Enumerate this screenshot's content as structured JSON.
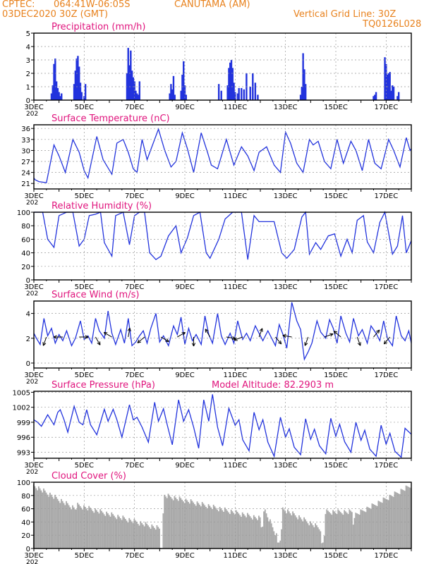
{
  "header": {
    "source": "CPTEC:",
    "coords": "064:41W-06:05S",
    "station": "CANUTAMA (AM)",
    "run": "03DEC2020 30Z (GMT)",
    "grid_note": "Vertical Grid Line: 30Z",
    "model_code": "TQ0126L028"
  },
  "colors": {
    "header": "#e8821e",
    "title": "#e0147d",
    "series": "#2233dd",
    "cloud": "#a9a9a9",
    "grid": "#999999"
  },
  "x_axis": {
    "tick_labels": [
      "3DEC",
      "5DEC",
      "7DEC",
      "9DEC",
      "11DEC",
      "13DEC",
      "15DEC",
      "17DEC"
    ],
    "tick_days": [
      3,
      5,
      7,
      9,
      11,
      13,
      15,
      17
    ],
    "year_stub": "202"
  },
  "chart_data": [
    {
      "type": "bar",
      "id": "precip",
      "title": "Precipitation (mm/h)",
      "ylim": [
        0,
        5
      ],
      "yticks": [
        "0",
        "1",
        "2",
        "3",
        "4",
        "5"
      ],
      "x": [
        3.7,
        3.75,
        3.8,
        3.85,
        3.9,
        3.95,
        4.0,
        4.05,
        4.1,
        4.6,
        4.65,
        4.7,
        4.75,
        4.8,
        4.85,
        4.9,
        5.0,
        5.05,
        6.7,
        6.75,
        6.8,
        6.85,
        6.9,
        6.95,
        7.0,
        7.05,
        7.1,
        7.15,
        7.2,
        8.4,
        8.45,
        8.5,
        8.55,
        8.6,
        8.85,
        8.9,
        8.95,
        9.0,
        9.05,
        10.35,
        10.45,
        10.7,
        10.75,
        10.8,
        10.85,
        10.9,
        10.95,
        11.0,
        11.1,
        11.15,
        11.25,
        11.35,
        11.45,
        11.6,
        11.7,
        11.8,
        11.9,
        13.6,
        13.65,
        13.7,
        13.75,
        13.8,
        16.5,
        16.55,
        16.6,
        16.95,
        17.0,
        17.05,
        17.1,
        17.15,
        17.2,
        17.25,
        17.3,
        17.45,
        17.5
      ],
      "values": [
        0.5,
        1.1,
        2.7,
        3.1,
        1.4,
        0.9,
        0.6,
        0.3,
        0.5,
        1.2,
        2.2,
        3.1,
        3.3,
        2.5,
        1.3,
        0.6,
        0.3,
        1.2,
        2.0,
        3.9,
        2.6,
        3.7,
        2.2,
        1.7,
        1.4,
        0.7,
        0.5,
        0.4,
        1.4,
        0.5,
        1.2,
        0.8,
        1.8,
        0.4,
        0.7,
        1.9,
        2.9,
        1.1,
        0.4,
        1.2,
        0.7,
        1.1,
        2.4,
        2.8,
        3.0,
        2.4,
        1.3,
        0.6,
        0.5,
        0.9,
        0.9,
        0.8,
        2.0,
        1.0,
        2.0,
        1.3,
        0.4,
        0.4,
        1.0,
        3.5,
        2.3,
        1.2,
        0.3,
        0.4,
        0.6,
        3.2,
        2.7,
        1.9,
        2.0,
        2.1,
        0.7,
        1.1,
        1.0,
        0.3,
        0.6
      ]
    },
    {
      "type": "line",
      "id": "temp",
      "title": "Surface Temperature (nC)",
      "ylim": [
        19.5,
        37
      ],
      "yticks": [
        "21",
        "24",
        "27",
        "30",
        "33",
        "36"
      ],
      "x": [
        3,
        3.05,
        3.2,
        3.5,
        3.8,
        4.0,
        4.25,
        4.55,
        4.8,
        5.0,
        5.15,
        5.5,
        5.75,
        6.1,
        6.3,
        6.55,
        6.75,
        6.95,
        7.1,
        7.3,
        7.5,
        7.95,
        8.2,
        8.45,
        8.65,
        8.9,
        9.1,
        9.35,
        9.65,
        9.9,
        10.05,
        10.3,
        10.65,
        10.95,
        11.25,
        11.5,
        11.75,
        11.95,
        12.25,
        12.55,
        12.8,
        13.0,
        13.2,
        13.45,
        13.7,
        13.95,
        14.1,
        14.3,
        14.55,
        14.8,
        15.05,
        15.3,
        15.6,
        15.8,
        16.05,
        16.3,
        16.55,
        16.8,
        17.1,
        17.3,
        17.55,
        17.8,
        17.95,
        18.0
      ],
      "values": [
        22.5,
        22.0,
        21.5,
        21.2,
        31.5,
        28.5,
        24.0,
        33.0,
        29.5,
        24.5,
        22.5,
        33.8,
        27.5,
        23.5,
        32.0,
        33.0,
        29.5,
        25.0,
        24.0,
        33.0,
        27.5,
        35.8,
        30.0,
        25.5,
        27.0,
        34.8,
        30.5,
        24.0,
        34.8,
        29.5,
        26.0,
        25.0,
        33.0,
        26.0,
        31.0,
        28.5,
        24.5,
        29.5,
        31.0,
        26.0,
        24.0,
        35.0,
        32.0,
        26.5,
        24.0,
        33.0,
        31.5,
        32.5,
        27.0,
        25.0,
        33.0,
        26.5,
        32.5,
        30.0,
        24.5,
        33.0,
        26.5,
        25.0,
        33.0,
        30.0,
        25.5,
        33.5,
        30.0,
        30.5
      ]
    },
    {
      "type": "line",
      "id": "rh",
      "title": "Relative Humidity (%)",
      "ylim": [
        0,
        100
      ],
      "yticks": [
        "0",
        "20",
        "40",
        "60",
        "80",
        "100"
      ],
      "x": [
        3,
        3.35,
        3.55,
        3.8,
        4.0,
        4.3,
        4.55,
        4.8,
        5.0,
        5.2,
        5.45,
        5.65,
        5.8,
        6.1,
        6.25,
        6.55,
        6.8,
        7.0,
        7.2,
        7.4,
        7.6,
        7.85,
        8.05,
        8.35,
        8.65,
        8.85,
        9.1,
        9.35,
        9.6,
        9.85,
        10.0,
        10.35,
        10.6,
        10.9,
        11.25,
        11.5,
        11.75,
        11.95,
        12.2,
        12.55,
        12.85,
        13.05,
        13.35,
        13.65,
        13.8,
        13.95,
        14.2,
        14.4,
        14.7,
        14.95,
        15.2,
        15.45,
        15.65,
        15.85,
        16.1,
        16.25,
        16.5,
        16.75,
        16.95,
        17.25,
        17.45,
        17.65,
        17.8,
        18.0
      ],
      "values": [
        100,
        100,
        60,
        48,
        95,
        100,
        100,
        50,
        60,
        95,
        97,
        100,
        55,
        35,
        95,
        100,
        52,
        95,
        100,
        100,
        40,
        30,
        35,
        65,
        80,
        40,
        62,
        95,
        100,
        40,
        32,
        60,
        90,
        100,
        100,
        30,
        95,
        86,
        86,
        86,
        40,
        32,
        45,
        93,
        100,
        38,
        55,
        45,
        65,
        68,
        35,
        60,
        40,
        88,
        95,
        56,
        40,
        85,
        100,
        38,
        50,
        95,
        40,
        58
      ]
    },
    {
      "type": "line",
      "id": "wind",
      "title": "Surface Wind (m/s)",
      "ylim": [
        -0.4,
        5
      ],
      "yticks": [
        "0",
        "2",
        "4"
      ],
      "x": [
        3,
        3.1,
        3.25,
        3.4,
        3.55,
        3.7,
        3.85,
        4.0,
        4.15,
        4.3,
        4.5,
        4.65,
        4.85,
        5.0,
        5.15,
        5.3,
        5.45,
        5.6,
        5.8,
        5.95,
        6.1,
        6.25,
        6.45,
        6.6,
        6.75,
        6.9,
        7.05,
        7.2,
        7.35,
        7.5,
        7.65,
        7.85,
        8.0,
        8.15,
        8.35,
        8.55,
        8.7,
        8.85,
        9.0,
        9.15,
        9.3,
        9.45,
        9.65,
        9.8,
        9.95,
        10.1,
        10.3,
        10.45,
        10.6,
        10.8,
        10.95,
        11.1,
        11.3,
        11.45,
        11.6,
        11.8,
        11.95,
        12.1,
        12.3,
        12.45,
        12.6,
        12.75,
        12.9,
        13.05,
        13.25,
        13.45,
        13.6,
        13.75,
        13.9,
        14.05,
        14.25,
        14.4,
        14.6,
        14.75,
        14.9,
        15.05,
        15.2,
        15.4,
        15.55,
        15.7,
        15.9,
        16.05,
        16.25,
        16.4,
        16.6,
        16.75,
        16.9,
        17.05,
        17.25,
        17.4,
        17.6,
        17.75,
        17.9,
        18.0
      ],
      "values": [
        2.4,
        2.0,
        1.5,
        3.6,
        2.2,
        2.8,
        1.6,
        2.3,
        1.8,
        2.6,
        1.4,
        2.0,
        3.4,
        1.9,
        2.2,
        1.6,
        3.6,
        2.6,
        2.0,
        4.2,
        2.4,
        1.5,
        2.7,
        1.6,
        3.6,
        1.4,
        1.7,
        2.2,
        2.6,
        1.6,
        2.8,
        4.0,
        1.7,
        2.2,
        1.4,
        3.0,
        2.3,
        3.7,
        1.5,
        2.8,
        1.8,
        2.3,
        1.5,
        3.8,
        2.3,
        1.6,
        4.0,
        2.2,
        1.5,
        2.4,
        1.6,
        3.4,
        1.9,
        2.4,
        1.8,
        3.0,
        2.4,
        1.8,
        2.6,
        2.0,
        1.4,
        3.1,
        2.3,
        1.2,
        4.9,
        3.4,
        2.7,
        0.3,
        0.9,
        1.6,
        3.4,
        2.5,
        2.0,
        3.5,
        2.8,
        1.6,
        3.8,
        2.4,
        1.7,
        3.6,
        2.2,
        2.7,
        1.6,
        3.0,
        2.4,
        1.8,
        3.4,
        2.0,
        1.4,
        3.8,
        2.2,
        1.8,
        2.6,
        1.6
      ]
    },
    {
      "type": "line",
      "id": "pressure",
      "title": "Surface Pressure (hPa)",
      "annotation": "Model Altitude: 82.2903 m",
      "ylim": [
        991.8,
        1005.2
      ],
      "yticks": [
        "993",
        "996",
        "999",
        "1002",
        "1005"
      ],
      "x": [
        3,
        3.15,
        3.3,
        3.55,
        3.8,
        3.95,
        4.05,
        4.2,
        4.35,
        4.6,
        4.8,
        4.95,
        5.1,
        5.25,
        5.5,
        5.8,
        5.95,
        6.15,
        6.3,
        6.5,
        6.8,
        6.95,
        7.1,
        7.3,
        7.55,
        7.8,
        7.95,
        8.15,
        8.3,
        8.5,
        8.75,
        8.95,
        9.15,
        9.35,
        9.55,
        9.75,
        9.95,
        10.1,
        10.3,
        10.5,
        10.75,
        11.0,
        11.15,
        11.3,
        11.55,
        11.75,
        11.95,
        12.1,
        12.3,
        12.55,
        12.8,
        13.0,
        13.15,
        13.35,
        13.6,
        13.8,
        14.0,
        14.15,
        14.35,
        14.6,
        14.8,
        15.0,
        15.15,
        15.35,
        15.6,
        15.8,
        16.0,
        16.15,
        16.35,
        16.6,
        16.8,
        17.0,
        17.15,
        17.35,
        17.6,
        17.75,
        18.0
      ],
      "values": [
        999.5,
        999.0,
        998.2,
        1000.5,
        998.5,
        1001.0,
        1001.5,
        999.5,
        997.0,
        1002.2,
        999.0,
        998.5,
        1001.5,
        998.5,
        996.5,
        1001.6,
        999.2,
        1001.6,
        999.5,
        996.0,
        1002.5,
        999.5,
        1000.0,
        998.0,
        995.0,
        1003.0,
        999.2,
        1001.7,
        998.5,
        994.5,
        1003.5,
        999.2,
        1001.5,
        998.0,
        993.8,
        1003.5,
        999.2,
        1004.6,
        998.0,
        994.3,
        1001.8,
        998.4,
        999.5,
        995.5,
        993.3,
        1001.0,
        997.5,
        999.5,
        995.0,
        992.2,
        1000.0,
        996.0,
        997.7,
        994.0,
        992.5,
        999.7,
        995.6,
        997.6,
        994.3,
        992.7,
        999.8,
        996.2,
        998.6,
        995.1,
        993.0,
        999.0,
        995.4,
        997.4,
        993.6,
        992.2,
        998.4,
        994.6,
        996.8,
        993.2,
        992.0,
        997.8,
        996.6
      ]
    },
    {
      "type": "bar",
      "id": "cloud",
      "title": "Cloud Cover (%)",
      "ylim": [
        0,
        100
      ],
      "yticks": [
        "0",
        "20",
        "40",
        "60",
        "80",
        "100"
      ],
      "note": "near-continuous grey bars ~90-100% with dips near 4DEC (~60%), 8DEC (~3%), 12DEC (~32%), 12.7DEC (~8%), 14.5DEC (~5%), 15.7DEC (~38%)",
      "x": [
        3,
        4.65,
        4.7,
        4.75,
        8.0,
        8.05,
        8.1,
        8.15,
        8.2,
        12.0,
        12.05,
        12.1,
        12.15,
        12.65,
        12.7,
        12.75,
        12.8,
        12.85,
        12.9,
        14.4,
        14.45,
        14.5,
        14.55,
        14.6,
        15.65,
        15.7,
        15.75,
        18.0
      ],
      "values": [
        95,
        60,
        62,
        65,
        30,
        3,
        3,
        50,
        80,
        45,
        32,
        35,
        60,
        20,
        8,
        10,
        15,
        25,
        60,
        30,
        5,
        8,
        20,
        55,
        55,
        38,
        50,
        95
      ]
    }
  ]
}
